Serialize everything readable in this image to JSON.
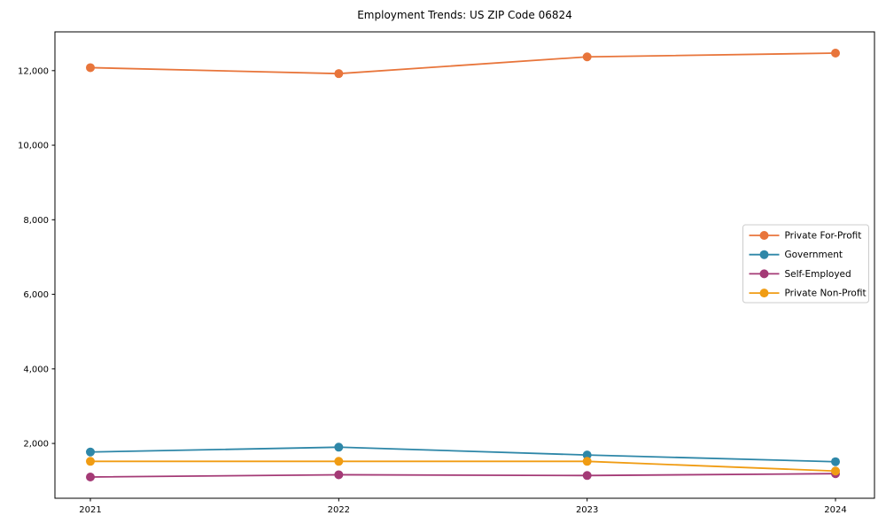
{
  "chart_data": {
    "type": "line",
    "title": "Employment Trends: US ZIP Code 06824",
    "x": [
      2021,
      2022,
      2023,
      2024
    ],
    "xtick_labels": [
      "2021",
      "2022",
      "2023",
      "2024"
    ],
    "yticks": [
      2000,
      4000,
      6000,
      8000,
      10000,
      12000
    ],
    "ytick_labels": [
      "2,000",
      "4,000",
      "6,000",
      "8,000",
      "10,000",
      "12,000"
    ],
    "ylim": [
      530,
      13040
    ],
    "xlabel": "",
    "ylabel": "",
    "grid": false,
    "legend_position": "center right",
    "series": [
      {
        "name": "Private For-Profit",
        "color": "#e8753b",
        "values": [
          12080,
          11920,
          12370,
          12470
        ]
      },
      {
        "name": "Government",
        "color": "#2e87a8",
        "values": [
          1770,
          1900,
          1690,
          1510
        ]
      },
      {
        "name": "Self-Employed",
        "color": "#a43a76",
        "values": [
          1100,
          1160,
          1140,
          1190
        ]
      },
      {
        "name": "Private Non-Profit",
        "color": "#f09c13",
        "values": [
          1520,
          1520,
          1520,
          1260
        ]
      }
    ],
    "axis_color": "#000000",
    "background_color": "#ffffff",
    "legend_border_color": "#cccccc"
  }
}
